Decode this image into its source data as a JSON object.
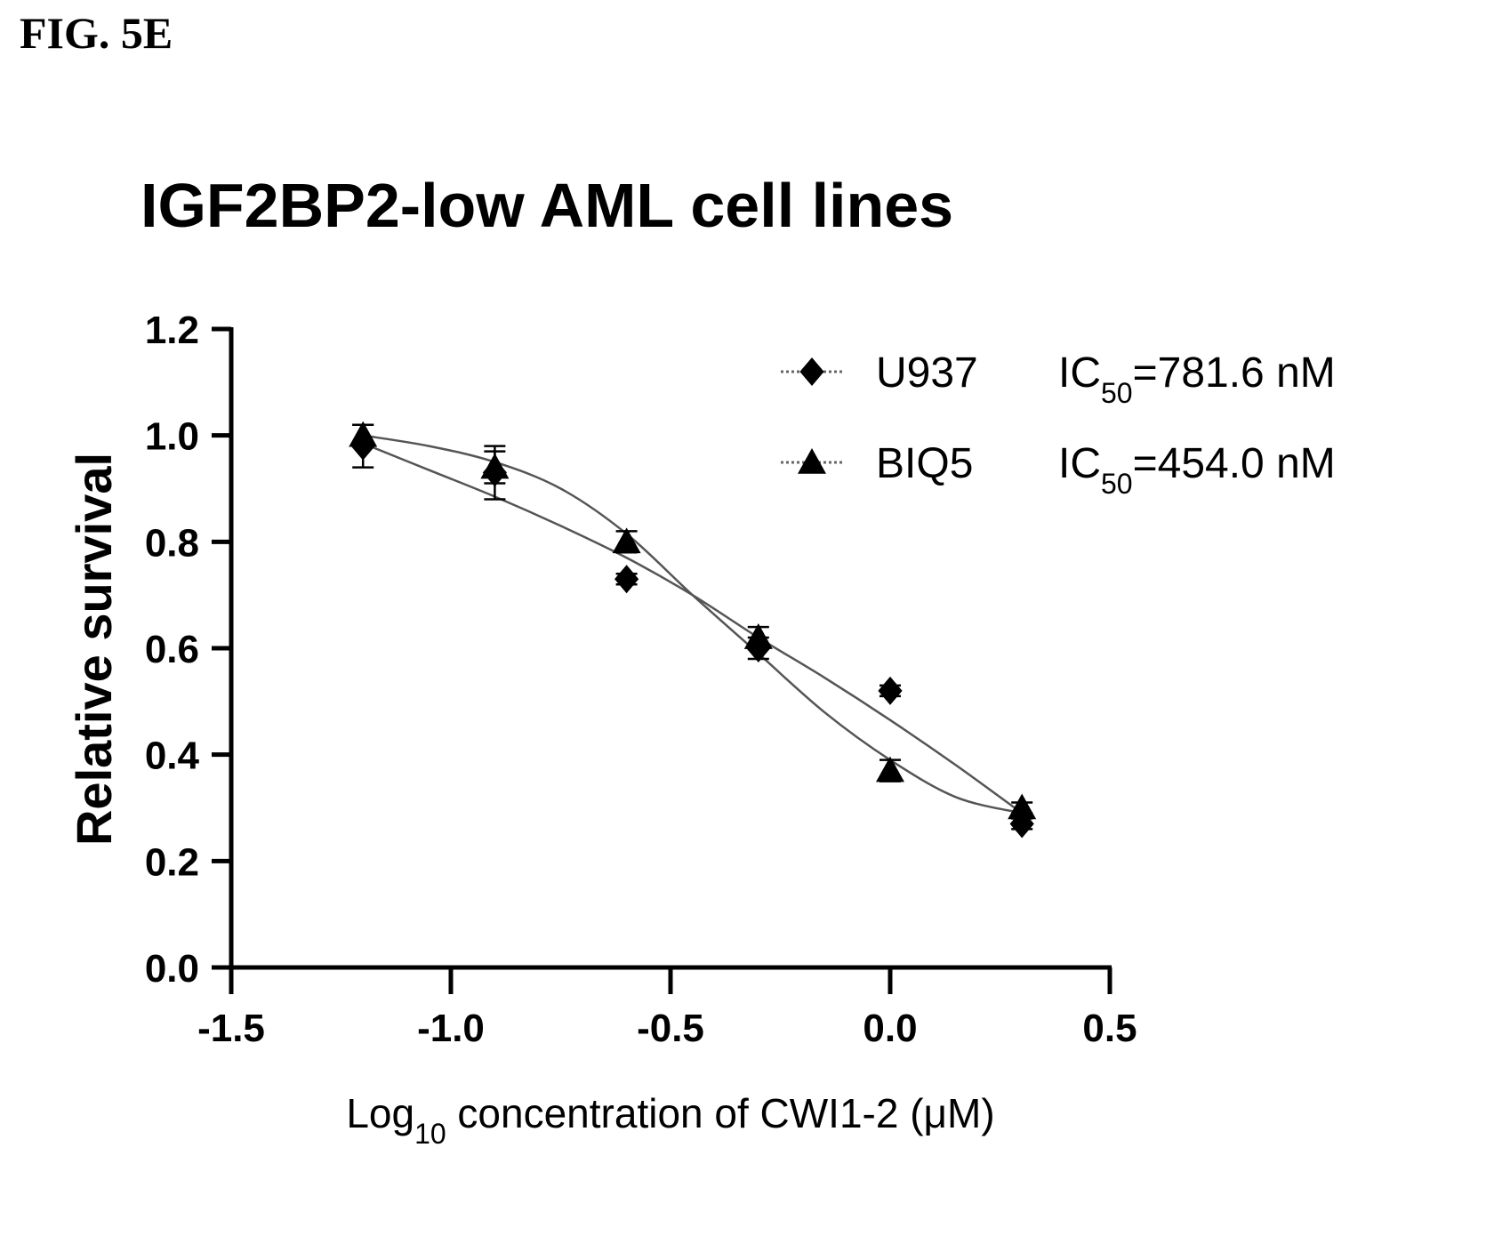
{
  "figure_label": "FIG. 5E",
  "chart_data": {
    "type": "scatter",
    "title": "IGF2BP2-low AML cell lines",
    "ylabel": "Relative survival",
    "xlabel": {
      "prefix": "Log",
      "sub": "10",
      "rest": " concentration of CWI1-2 (μM)"
    },
    "xlim": [
      -1.5,
      0.5
    ],
    "ylim": [
      0.0,
      1.2
    ],
    "xticks": [
      "-1.5",
      "-1.0",
      "-0.5",
      "0.0",
      "0.5"
    ],
    "yticks": [
      "0.0",
      "0.2",
      "0.4",
      "0.6",
      "0.8",
      "1.0",
      "1.2"
    ],
    "legend_position": "top-right",
    "series": [
      {
        "name": "U937",
        "marker": "diamond",
        "ic50_prefix": "IC",
        "ic50_sub": "50",
        "ic50_rest": "=781.6 nM",
        "x": [
          -1.2,
          -0.9,
          -0.6,
          -0.3,
          0.0,
          0.3
        ],
        "y": [
          0.98,
          0.93,
          0.73,
          0.6,
          0.52,
          0.27
        ],
        "err": [
          0.04,
          0.05,
          0.01,
          0.02,
          0.01,
          0.01
        ],
        "fit": [
          [
            -1.2,
            0.985
          ],
          [
            -1.05,
            0.935
          ],
          [
            -0.9,
            0.885
          ],
          [
            -0.75,
            0.83
          ],
          [
            -0.6,
            0.77
          ],
          [
            -0.45,
            0.7
          ],
          [
            -0.3,
            0.62
          ],
          [
            -0.15,
            0.545
          ],
          [
            0.0,
            0.465
          ],
          [
            0.15,
            0.38
          ],
          [
            0.3,
            0.29
          ]
        ]
      },
      {
        "name": "BIQ5",
        "marker": "triangle",
        "ic50_prefix": "IC",
        "ic50_sub": "50",
        "ic50_rest": "=454.0 nM",
        "x": [
          -1.2,
          -0.9,
          -0.6,
          -0.3,
          0.0,
          0.3
        ],
        "y": [
          1.0,
          0.94,
          0.8,
          0.62,
          0.37,
          0.3
        ],
        "err": [
          0.02,
          0.03,
          0.02,
          0.02,
          0.02,
          0.01
        ],
        "fit": [
          [
            -1.2,
            1.0
          ],
          [
            -1.05,
            0.98
          ],
          [
            -0.9,
            0.95
          ],
          [
            -0.75,
            0.9
          ],
          [
            -0.6,
            0.815
          ],
          [
            -0.45,
            0.7
          ],
          [
            -0.3,
            0.59
          ],
          [
            -0.15,
            0.48
          ],
          [
            0.0,
            0.39
          ],
          [
            0.15,
            0.32
          ],
          [
            0.3,
            0.29
          ]
        ]
      }
    ]
  }
}
